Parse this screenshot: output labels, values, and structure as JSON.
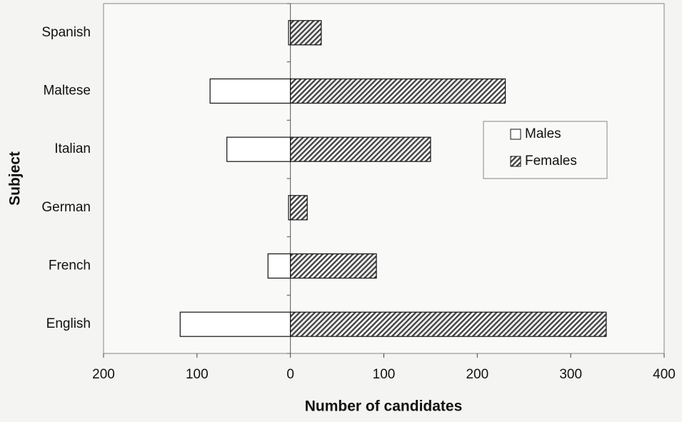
{
  "chart_data": {
    "type": "bar",
    "orientation": "horizontal",
    "xlabel": "Number of candidates",
    "ylabel": "Subject",
    "categories": [
      "English",
      "French",
      "German",
      "Italian",
      "Maltese",
      "Spanish"
    ],
    "series": [
      {
        "name": "Males",
        "color": "#ffffff",
        "values": [
          -118,
          -24,
          -2,
          -68,
          -86,
          -2
        ]
      },
      {
        "name": "Females",
        "color": "#444444",
        "hatch": true,
        "values": [
          338,
          92,
          18,
          150,
          230,
          33
        ]
      }
    ],
    "xlim": [
      -200,
      400
    ],
    "xticks": [
      {
        "value": -200,
        "label": "200"
      },
      {
        "value": -100,
        "label": "100"
      },
      0,
      100,
      200,
      300,
      400
    ],
    "legend_position": "right",
    "grid": false
  }
}
